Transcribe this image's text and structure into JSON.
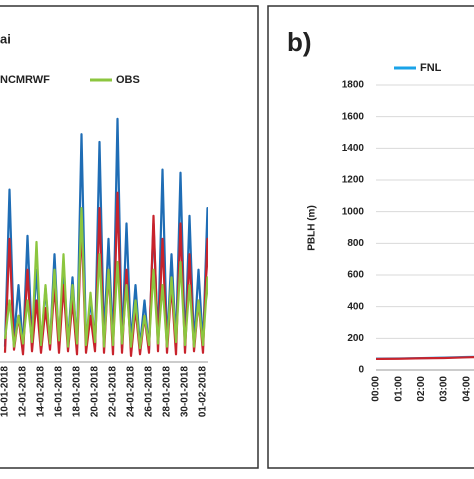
{
  "chart_data": [
    {
      "type": "line",
      "title": "ai",
      "categories": [
        "10-01-2018",
        null,
        null,
        null,
        "12-01-2018",
        null,
        null,
        null,
        "14-01-2018",
        null,
        null,
        null,
        "16-01-2018",
        null,
        null,
        null,
        "18-01-2018",
        null,
        null,
        null,
        "20-01-2018",
        null,
        null,
        null,
        "22-01-2018",
        null,
        null,
        null,
        "24-01-2018",
        null,
        null,
        null,
        "26-01-2018",
        null,
        null,
        null,
        "28-01-2018",
        null,
        null,
        null,
        "30-01-2018",
        null,
        null,
        null,
        "01-02-2018",
        null,
        null
      ],
      "series": [
        {
          "color": "#1f6db5",
          "values": [
            100,
            1120,
            150,
            500,
            80,
            820,
            120,
            600,
            90,
            480,
            110,
            700,
            100,
            620,
            130,
            550,
            90,
            1480,
            120,
            400,
            100,
            1430,
            140,
            800,
            110,
            1580,
            90,
            900,
            120,
            500,
            100,
            400,
            80,
            900,
            130,
            1250,
            100,
            700,
            120,
            1230,
            90,
            950,
            110,
            600,
            100,
            1000,
            120
          ]
        },
        {
          "name": "NCMRWF",
          "color": "#c8232c",
          "values": [
            60,
            800,
            80,
            300,
            50,
            600,
            70,
            400,
            60,
            350,
            80,
            500,
            60,
            500,
            70,
            400,
            50,
            900,
            60,
            300,
            70,
            1000,
            60,
            600,
            50,
            1100,
            60,
            600,
            40,
            350,
            50,
            300,
            60,
            950,
            70,
            800,
            60,
            500,
            50,
            900,
            60,
            700,
            70,
            400,
            60,
            800,
            70
          ]
        },
        {
          "name": "OBS",
          "color": "#8cc63f",
          "values": [
            150,
            400,
            100,
            300,
            120,
            400,
            130,
            780,
            110,
            500,
            120,
            600,
            140,
            700,
            100,
            500,
            120,
            1000,
            110,
            450,
            130,
            700,
            100,
            600,
            110,
            650,
            120,
            500,
            100,
            400,
            90,
            300,
            110,
            600,
            120,
            500,
            100,
            550,
            130,
            650,
            110,
            500,
            100,
            400,
            110,
            550,
            120
          ]
        }
      ],
      "ylim": [
        0,
        1800
      ]
    },
    {
      "type": "line",
      "title": "b)",
      "ylabel": "PBLH (m)",
      "categories": [
        "00:00",
        "01:00",
        "02:00",
        "03:00",
        "04:00",
        null
      ],
      "series": [
        {
          "name": "FNL",
          "color": "#1aa3e8",
          "values": [
            72,
            73,
            75,
            78,
            82,
            86
          ]
        },
        {
          "color": "#c8232c",
          "values": [
            70,
            71,
            74,
            76,
            80,
            84
          ]
        }
      ],
      "ylim": [
        0,
        1800
      ],
      "yticks": [
        0,
        200,
        400,
        600,
        800,
        1000,
        1200,
        1400,
        1600,
        1800
      ],
      "grid": true
    }
  ]
}
